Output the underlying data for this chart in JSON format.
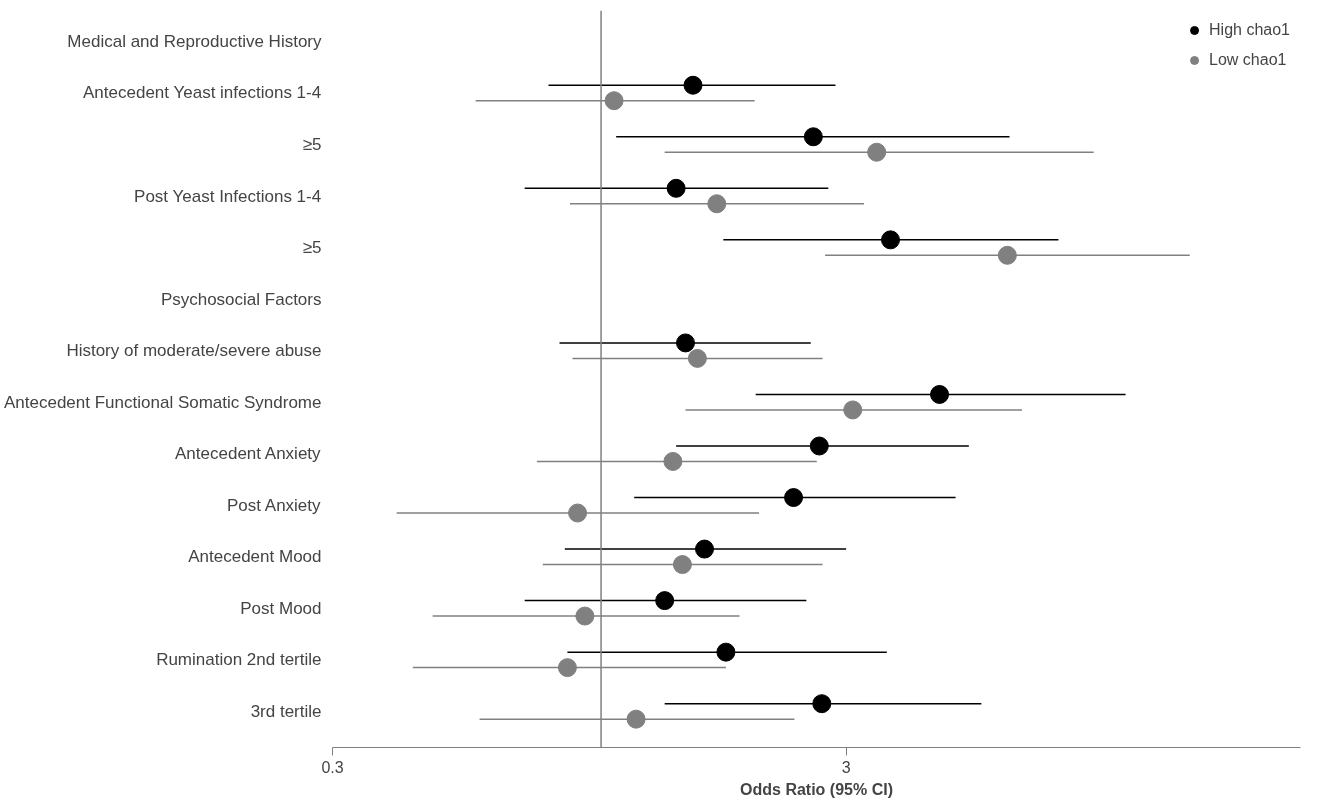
{
  "chart_data": {
    "type": "scatter",
    "orientation": "horizontal",
    "xlabel": "Odds Ratio (95% CI)",
    "categories": [
      "Medical and Reproductive History",
      "Antecedent Yeast infections 1-4",
      "≥5",
      "Post Yeast Infections 1-4",
      "≥5",
      "Psychosocial Factors",
      "History of moderate/severe abuse",
      "Antecedent Functional Somatic Syndrome",
      "Antecedent Anxiety",
      "Post Anxiety",
      "Antecedent Mood",
      "Post Mood",
      "Rumination 2nd tertile",
      "3rd tertile"
    ],
    "series": [
      {
        "name": "High chao1",
        "color": "#000000",
        "values": [
          null,
          1.51,
          2.59,
          1.4,
          3.66,
          null,
          1.46,
          4.56,
          2.66,
          2.37,
          1.59,
          1.33,
          1.75,
          2.69
        ],
        "errors": [
          null,
          [
            0.79,
            2.86
          ],
          [
            1.07,
            6.24
          ],
          [
            0.71,
            2.77
          ],
          [
            1.73,
            7.77
          ],
          null,
          [
            0.83,
            2.56
          ],
          [
            2.0,
            10.5
          ],
          [
            1.4,
            5.2
          ],
          [
            1.16,
            4.9
          ],
          [
            0.85,
            3.0
          ],
          [
            0.71,
            2.51
          ],
          [
            0.86,
            3.6
          ],
          [
            1.33,
            5.5
          ]
        ]
      },
      {
        "name": "Low chao1",
        "color": "#808080",
        "values": [
          null,
          1.06,
          3.44,
          1.68,
          6.18,
          null,
          1.54,
          3.09,
          1.38,
          0.9,
          1.44,
          0.93,
          0.86,
          1.17
        ],
        "errors": [
          null,
          [
            0.57,
            1.99
          ],
          [
            1.33,
            9.1
          ],
          [
            0.87,
            3.25
          ],
          [
            2.73,
            14.0
          ],
          null,
          [
            0.88,
            2.7
          ],
          [
            1.46,
            6.6
          ],
          [
            0.75,
            2.63
          ],
          [
            0.4,
            2.03
          ],
          [
            0.77,
            2.7
          ],
          [
            0.47,
            1.86
          ],
          [
            0.43,
            1.75
          ],
          [
            0.58,
            2.38
          ]
        ]
      }
    ],
    "log": "x",
    "xlim": [
      0.3,
      23
    ],
    "xticks": [
      0.3,
      3
    ],
    "ref_lines": [
      {
        "axis": "x",
        "value": 1,
        "color": "#808080"
      }
    ],
    "legend": "top right",
    "grid": false,
    "marker": "circle"
  }
}
